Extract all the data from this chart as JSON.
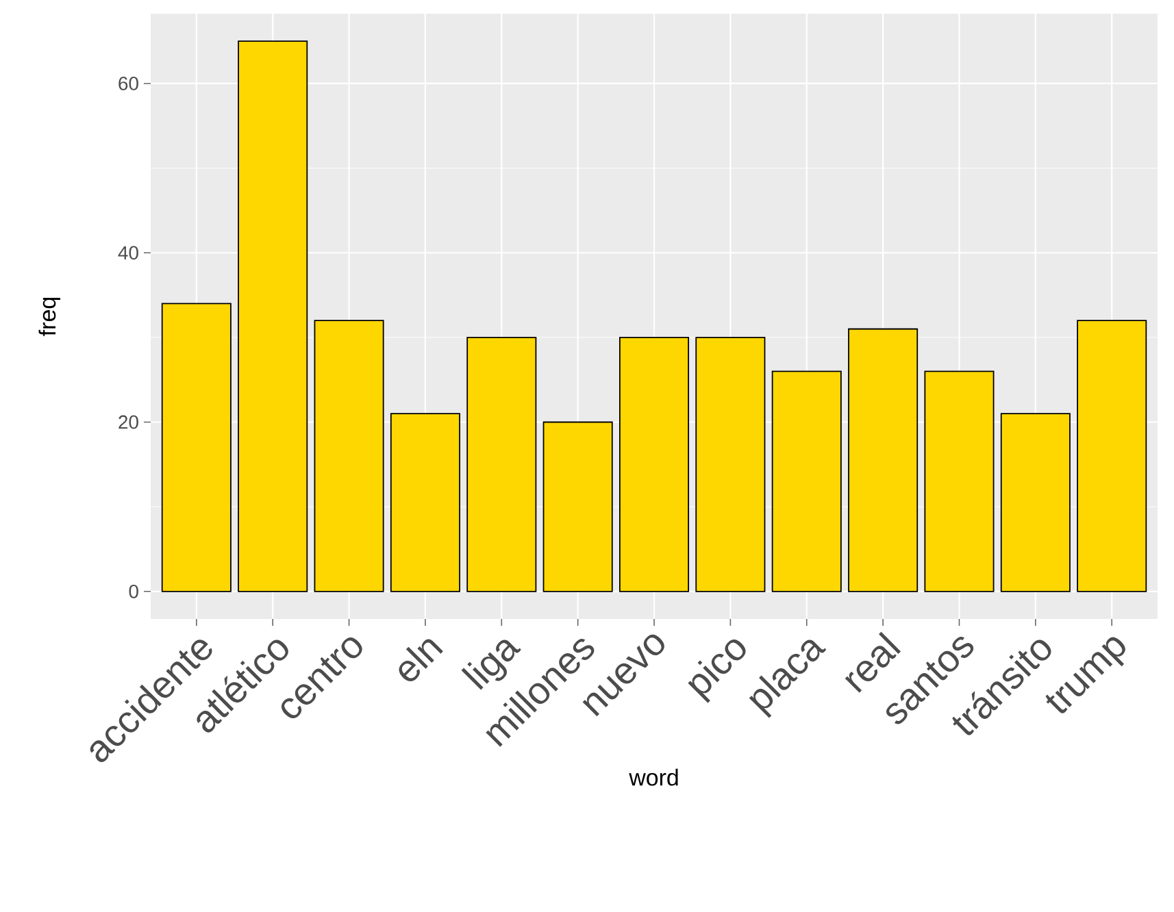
{
  "chart_data": {
    "type": "bar",
    "xlabel": "word",
    "ylabel": "freq",
    "categories": [
      "accidente",
      "atlético",
      "centro",
      "eln",
      "liga",
      "millones",
      "nuevo",
      "pico",
      "placa",
      "real",
      "santos",
      "tránsito",
      "trump"
    ],
    "values": [
      34,
      65,
      32,
      21,
      30,
      20,
      30,
      30,
      26,
      31,
      26,
      21,
      32
    ],
    "color": "#ffd700",
    "ylim": [
      -3.25,
      68.25
    ],
    "yticks": [
      0,
      20,
      40,
      60
    ],
    "grid": true
  }
}
